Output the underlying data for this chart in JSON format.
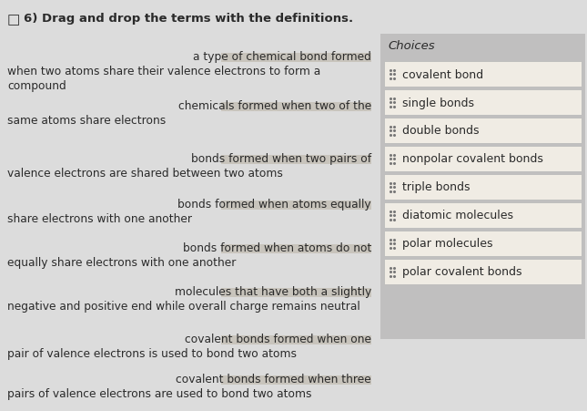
{
  "title": "6) Drag and drop the terms with the definitions.",
  "title_fontsize": 9.5,
  "bg_color": "#dcdcdc",
  "choices_header": "Choices",
  "choices_bg": "#c0bfbf",
  "choice_box_color": "#f0ece4",
  "choice_box_border": "#bbbbbb",
  "choices": [
    "covalent bond",
    "single bonds",
    "double bonds",
    "nonpolar covalent bonds",
    "triple bonds",
    "diatomic molecules",
    "polar molecules",
    "polar covalent bonds"
  ],
  "text_color": "#2a2a2a",
  "blank_color": "#c8c4bc",
  "dot_color": "#777777",
  "definitions": [
    [
      "a type of chemical bond formed",
      "when two atoms share their valence electrons to form a",
      "compound"
    ],
    [
      "chemicals formed when two of the",
      "same atoms share electrons"
    ],
    [
      "bonds formed when two pairs of",
      "valence electrons are shared between two atoms"
    ],
    [
      "bonds formed when atoms equally",
      "share electrons with one another"
    ],
    [
      "bonds formed when atoms do not",
      "equally share electrons with one another"
    ],
    [
      "molecules that have both a slightly",
      "negative and positive end while overall charge remains neutral"
    ],
    [
      "covalent bonds formed when one",
      "pair of valence electrons is used to bond two atoms"
    ],
    [
      "covalent bonds formed when three",
      "pairs of valence electrons are used to bond two atoms"
    ]
  ]
}
